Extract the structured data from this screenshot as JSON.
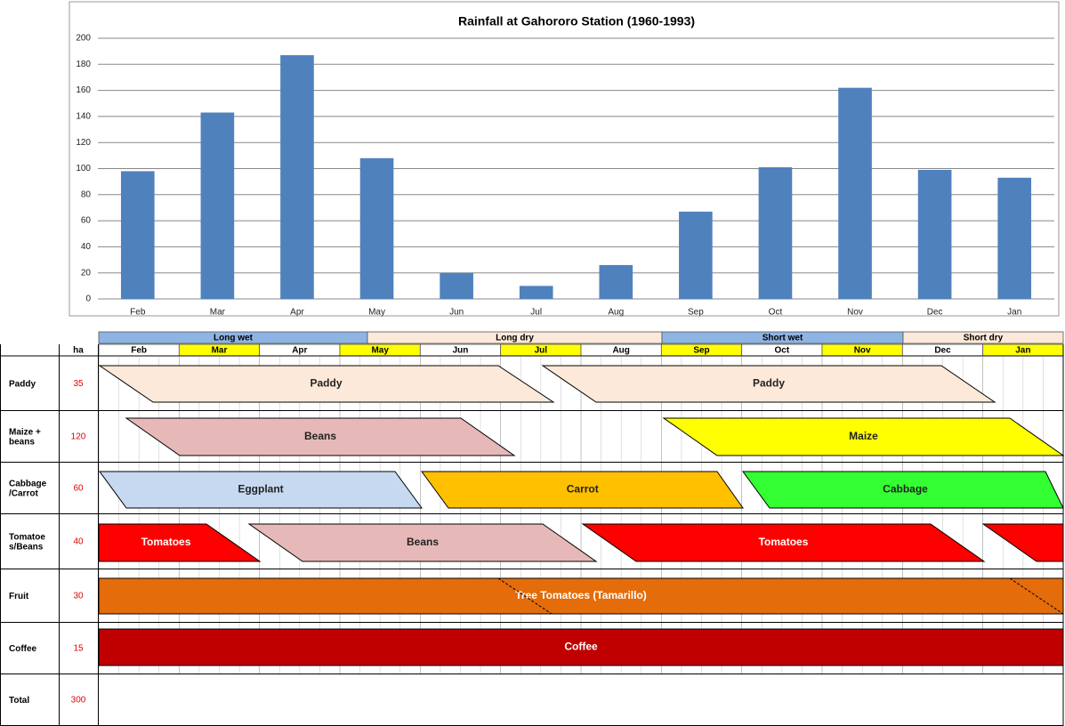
{
  "chart_data": {
    "type": "bar",
    "title": "Rainfall at Gahororo Station (1960-1993)",
    "categories": [
      "Feb",
      "Mar",
      "Apr",
      "May",
      "Jun",
      "Jul",
      "Aug",
      "Sep",
      "Oct",
      "Nov",
      "Dec",
      "Jan"
    ],
    "values": [
      98,
      143,
      187,
      108,
      20,
      10,
      26,
      67,
      101,
      162,
      99,
      93
    ],
    "color": "#4f81bd",
    "ylim": [
      0,
      200
    ],
    "yticks": [
      0,
      20,
      40,
      60,
      80,
      100,
      120,
      140,
      160,
      180,
      200
    ],
    "grid": true
  },
  "calendar": {
    "area_header": "ha",
    "seasons": [
      {
        "name": "Long wet",
        "color": "#8eb4e3"
      },
      {
        "name": "Long dry",
        "color": "#fde9d9"
      },
      {
        "name": "Short wet",
        "color": "#8eb4e3"
      },
      {
        "name": "Short dry",
        "color": "#fde9d9"
      }
    ],
    "months": [
      "Feb",
      "Mar",
      "Apr",
      "May",
      "Jun",
      "Jul",
      "Aug",
      "Sep",
      "Oct",
      "Nov",
      "Dec",
      "Jan"
    ],
    "month_colors": [
      "#ffffff",
      "#ffff00",
      "#ffffff",
      "#ffff00",
      "#ffffff",
      "#ffff00",
      "#ffffff",
      "#ffff00",
      "#ffffff",
      "#ffff00",
      "#ffffff",
      "#ffff00"
    ],
    "rows": [
      {
        "lines": [
          "Paddy"
        ],
        "ha": 35,
        "crops": [
          {
            "label": "Paddy",
            "color": "#fde9d9"
          },
          {
            "label": "Paddy",
            "color": "#fde9d9"
          }
        ]
      },
      {
        "lines": [
          "Maize +",
          "beans"
        ],
        "ha": 120,
        "crops": [
          {
            "label": "Beans",
            "color": "#e6b9b8"
          },
          {
            "label": "Maize",
            "color": "#ffff00"
          }
        ]
      },
      {
        "lines": [
          "Cabbage",
          "/Carrot"
        ],
        "ha": 60,
        "crops": [
          {
            "label": "Eggplant",
            "color": "#c6d9f1"
          },
          {
            "label": "Carrot",
            "color": "#ffc000"
          },
          {
            "label": "Cabbage",
            "color": "#33ff33"
          }
        ]
      },
      {
        "lines": [
          "Tomatoe",
          "s/Beans"
        ],
        "ha": 40,
        "crops": [
          {
            "label": "Tomatoes",
            "color": "#ff0000"
          },
          {
            "label": "Beans",
            "color": "#e6b9b8"
          },
          {
            "label": "Tomatoes",
            "color": "#ff0000"
          },
          {
            "color": "#ff0000"
          }
        ]
      },
      {
        "lines": [
          "Fruit"
        ],
        "ha": 30,
        "crops": [
          {
            "label": "Tree Tomatoes (Tamarillo)",
            "color": "#e46c0a"
          }
        ]
      },
      {
        "lines": [
          "Coffee"
        ],
        "ha": 15,
        "crops": [
          {
            "label": "Coffee",
            "color": "#c00000"
          }
        ]
      },
      {
        "lines": [
          "Total"
        ],
        "ha": 300,
        "crops": []
      }
    ]
  }
}
